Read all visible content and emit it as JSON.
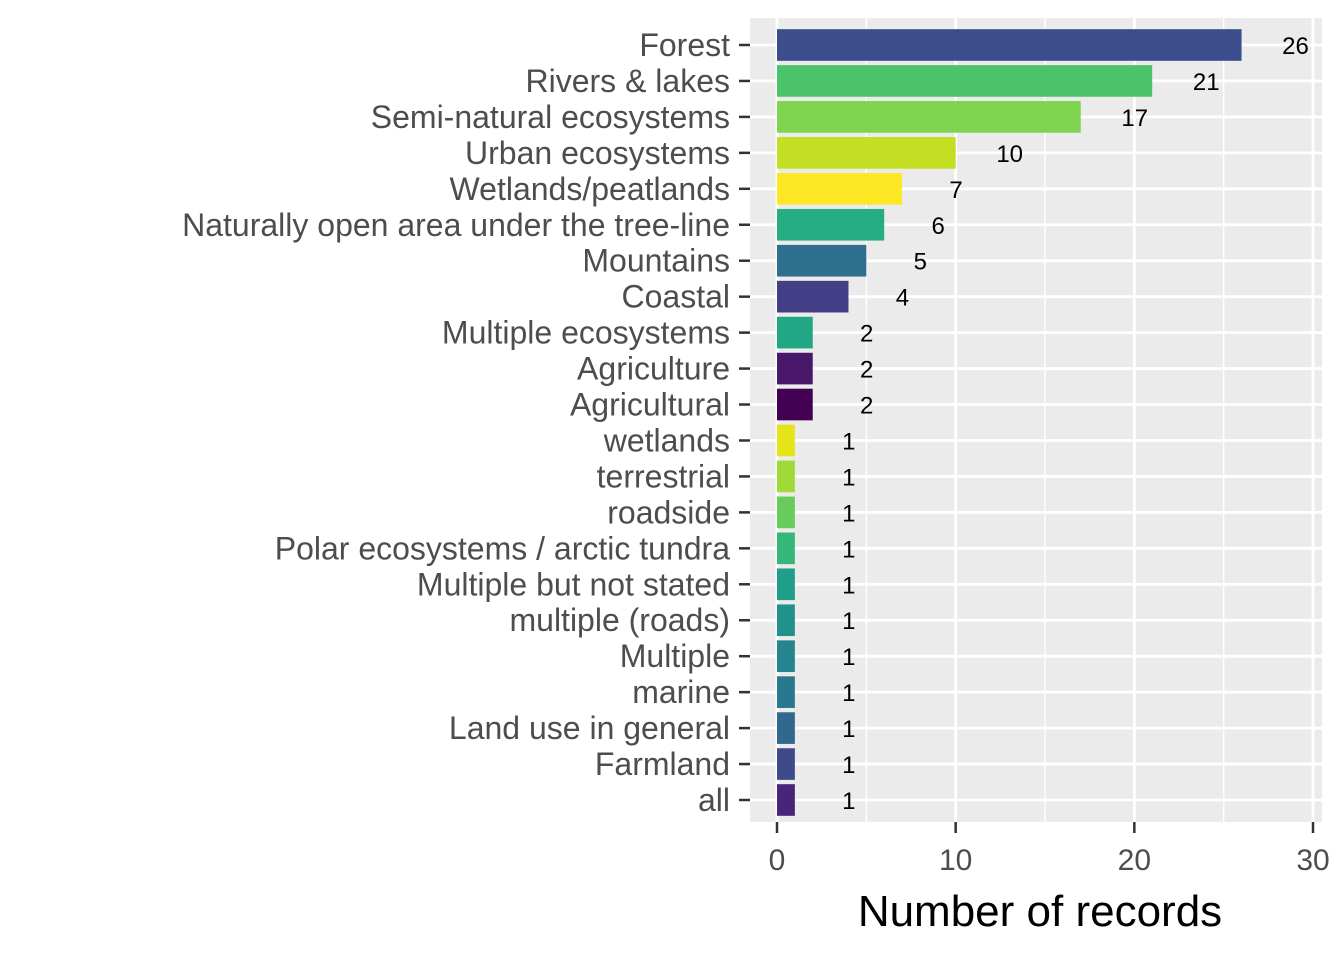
{
  "chart_data": {
    "type": "bar",
    "orientation": "horizontal",
    "title": "",
    "xlabel": "Number of records",
    "ylabel": "",
    "xlim": [
      0,
      30
    ],
    "x_ticks": [
      0,
      10,
      20,
      30
    ],
    "grid": true,
    "legend": "none",
    "panel_background": "#ebebeb",
    "grid_color": "#ffffff",
    "categories": [
      "Forest",
      "Rivers & lakes",
      "Semi-natural ecosystems",
      "Urban ecosystems",
      "Wetlands/peatlands",
      "Naturally open area under the tree-line",
      "Mountains",
      "Coastal",
      "Multiple ecosystems",
      "Agriculture",
      "Agricultural",
      "wetlands",
      "terrestrial",
      "roadside",
      "Polar ecosystems / arctic tundra",
      "Multiple but not stated",
      "multiple (roads)",
      "Multiple",
      "marine",
      "Land use in general",
      "Farmland",
      "all"
    ],
    "values": [
      26,
      21,
      17,
      10,
      7,
      6,
      5,
      4,
      2,
      2,
      2,
      1,
      1,
      1,
      1,
      1,
      1,
      1,
      1,
      1,
      1,
      1
    ],
    "colors": [
      "#3b4d8a",
      "#4bc36b",
      "#7ed34f",
      "#c3de23",
      "#fde725",
      "#26ad81",
      "#2e6f8e",
      "#433e85",
      "#22a784",
      "#481769",
      "#440154",
      "#e5e419",
      "#a0da39",
      "#67cc5c",
      "#35b779",
      "#1f9e89",
      "#21918c",
      "#25858e",
      "#2a788e",
      "#30688e",
      "#3e4a89",
      "#482576"
    ]
  }
}
